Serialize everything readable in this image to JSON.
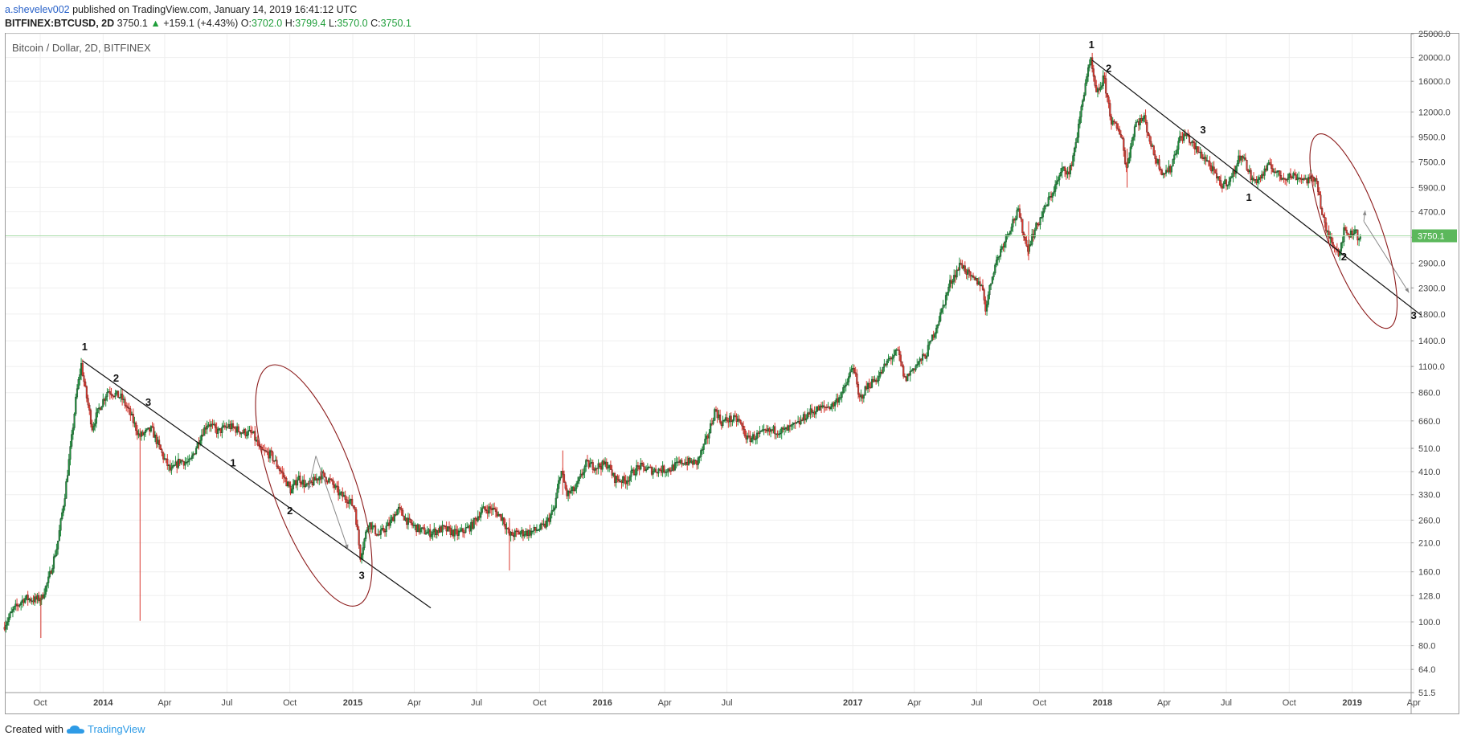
{
  "header": {
    "author": "a.shevelev002",
    "published": "published on TradingView.com, January 14, 2019 16:41:12 UTC",
    "symbol": "BITFINEX:BTCUSD, 2D",
    "price": "3750.1",
    "change_arrow": "▲",
    "change": "+159.1 (+4.43%)",
    "o_label": "O:",
    "o_value": "3702.0",
    "h_label": "H:",
    "h_value": "3799.4",
    "l_label": "L:",
    "l_value": "3570.0",
    "c_label": "C:",
    "c_value": "3750.1"
  },
  "chart_title": "Bitcoin / Dollar, 2D, BITFINEX",
  "footer": {
    "created_with": "Created with",
    "brand": "TradingView"
  },
  "colors": {
    "up": "#1e8f3c",
    "down": "#d9372e",
    "last_price_bg": "#5cb85c",
    "annotation": "#8b1a1a",
    "grid": "#efefef"
  },
  "chart_data": {
    "type": "candlestick",
    "scale": "log",
    "ylim": [
      51.5,
      25000
    ],
    "y_ticks": [
      "25000.0",
      "20000.0",
      "16000.0",
      "12000.0",
      "9500.0",
      "7500.0",
      "5900.0",
      "4700.0",
      "3700.0",
      "2900.0",
      "2300.0",
      "1800.0",
      "1400.0",
      "1100.0",
      "860.0",
      "660.0",
      "510.0",
      "410.0",
      "330.0",
      "260.0",
      "210.0",
      "160.0",
      "128.0",
      "100.0",
      "80.0",
      "64.0",
      "51.5"
    ],
    "x_ticks": [
      {
        "label": "Oct",
        "date": "2013-10-01"
      },
      {
        "label": "2014",
        "date": "2014-01-01",
        "bold": true
      },
      {
        "label": "Apr",
        "date": "2014-04-01"
      },
      {
        "label": "Jul",
        "date": "2014-07-01"
      },
      {
        "label": "Oct",
        "date": "2014-10-01"
      },
      {
        "label": "2015",
        "date": "2015-01-01",
        "bold": true
      },
      {
        "label": "Apr",
        "date": "2015-04-01"
      },
      {
        "label": "Jul",
        "date": "2015-07-01"
      },
      {
        "label": "Oct",
        "date": "2015-10-01"
      },
      {
        "label": "2016",
        "date": "2016-01-01",
        "bold": true
      },
      {
        "label": "Apr",
        "date": "2016-04-01"
      },
      {
        "label": "Jul",
        "date": "2016-07-01"
      },
      {
        "label": "2017",
        "date": "2017-01-01",
        "bold": true
      },
      {
        "label": "Apr",
        "date": "2017-04-01"
      },
      {
        "label": "Jul",
        "date": "2017-07-01"
      },
      {
        "label": "Oct",
        "date": "2017-10-01"
      },
      {
        "label": "2018",
        "date": "2018-01-01",
        "bold": true
      },
      {
        "label": "Apr",
        "date": "2018-04-01"
      },
      {
        "label": "Jul",
        "date": "2018-07-01"
      },
      {
        "label": "Oct",
        "date": "2018-10-01"
      },
      {
        "label": "2019",
        "date": "2019-01-01",
        "bold": true
      },
      {
        "label": "Apr",
        "date": "2019-04-01"
      }
    ],
    "price_path": [
      [
        "2013-08-10",
        95
      ],
      [
        "2013-08-25",
        112
      ],
      [
        "2013-09-10",
        125
      ],
      [
        "2013-09-25",
        123
      ],
      [
        "2013-10-05",
        125
      ],
      [
        "2013-10-15",
        148
      ],
      [
        "2013-10-28",
        205
      ],
      [
        "2013-11-08",
        330
      ],
      [
        "2013-11-18",
        560
      ],
      [
        "2013-11-25",
        850
      ],
      [
        "2013-12-02",
        1120
      ],
      [
        "2013-12-08",
        880
      ],
      [
        "2013-12-18",
        620
      ],
      [
        "2013-12-28",
        740
      ],
      [
        "2014-01-10",
        880
      ],
      [
        "2014-01-30",
        820
      ],
      [
        "2014-02-12",
        700
      ],
      [
        "2014-02-25",
        570
      ],
      [
        "2014-03-15",
        610
      ],
      [
        "2014-04-01",
        470
      ],
      [
        "2014-04-12",
        410
      ],
      [
        "2014-04-25",
        455
      ],
      [
        "2014-05-10",
        445
      ],
      [
        "2014-05-25",
        570
      ],
      [
        "2014-06-05",
        650
      ],
      [
        "2014-06-20",
        595
      ],
      [
        "2014-07-05",
        630
      ],
      [
        "2014-07-25",
        595
      ],
      [
        "2014-08-10",
        585
      ],
      [
        "2014-08-20",
        500
      ],
      [
        "2014-09-05",
        480
      ],
      [
        "2014-09-20",
        410
      ],
      [
        "2014-10-05",
        340
      ],
      [
        "2014-10-15",
        390
      ],
      [
        "2014-10-28",
        355
      ],
      [
        "2014-11-10",
        380
      ],
      [
        "2014-11-18",
        400
      ],
      [
        "2014-12-01",
        375
      ],
      [
        "2014-12-15",
        330
      ],
      [
        "2014-12-28",
        315
      ],
      [
        "2015-01-06",
        290
      ],
      [
        "2015-01-14",
        185
      ],
      [
        "2015-01-26",
        255
      ],
      [
        "2015-02-10",
        225
      ],
      [
        "2015-02-25",
        250
      ],
      [
        "2015-03-10",
        290
      ],
      [
        "2015-03-25",
        255
      ],
      [
        "2015-04-10",
        238
      ],
      [
        "2015-04-25",
        230
      ],
      [
        "2015-05-15",
        240
      ],
      [
        "2015-06-05",
        228
      ],
      [
        "2015-06-25",
        245
      ],
      [
        "2015-07-10",
        285
      ],
      [
        "2015-07-25",
        290
      ],
      [
        "2015-08-10",
        265
      ],
      [
        "2015-08-20",
        225
      ],
      [
        "2015-09-01",
        230
      ],
      [
        "2015-09-20",
        232
      ],
      [
        "2015-10-10",
        245
      ],
      [
        "2015-10-25",
        290
      ],
      [
        "2015-11-03",
        420
      ],
      [
        "2015-11-12",
        330
      ],
      [
        "2015-11-25",
        350
      ],
      [
        "2015-12-10",
        440
      ],
      [
        "2015-12-25",
        430
      ],
      [
        "2016-01-10",
        440
      ],
      [
        "2016-01-20",
        385
      ],
      [
        "2016-02-05",
        375
      ],
      [
        "2016-02-25",
        430
      ],
      [
        "2016-03-15",
        415
      ],
      [
        "2016-04-10",
        420
      ],
      [
        "2016-04-30",
        450
      ],
      [
        "2016-05-20",
        445
      ],
      [
        "2016-06-05",
        570
      ],
      [
        "2016-06-16",
        740
      ],
      [
        "2016-06-24",
        650
      ],
      [
        "2016-07-05",
        670
      ],
      [
        "2016-07-20",
        665
      ],
      [
        "2016-08-02",
        555
      ],
      [
        "2016-08-20",
        580
      ],
      [
        "2016-09-10",
        605
      ],
      [
        "2016-09-25",
        600
      ],
      [
        "2016-10-15",
        640
      ],
      [
        "2016-10-30",
        710
      ],
      [
        "2016-11-15",
        740
      ],
      [
        "2016-12-05",
        765
      ],
      [
        "2016-12-22",
        890
      ],
      [
        "2017-01-04",
        1120
      ],
      [
        "2017-01-12",
        800
      ],
      [
        "2017-01-25",
        920
      ],
      [
        "2017-02-10",
        1000
      ],
      [
        "2017-02-25",
        1180
      ],
      [
        "2017-03-10",
        1260
      ],
      [
        "2017-03-20",
        970
      ],
      [
        "2017-04-01",
        1080
      ],
      [
        "2017-04-20",
        1230
      ],
      [
        "2017-05-10",
        1750
      ],
      [
        "2017-05-25",
        2400
      ],
      [
        "2017-06-10",
        2900
      ],
      [
        "2017-06-25",
        2500
      ],
      [
        "2017-07-10",
        2400
      ],
      [
        "2017-07-16",
        1900
      ],
      [
        "2017-07-28",
        2750
      ],
      [
        "2017-08-10",
        3450
      ],
      [
        "2017-08-25",
        4300
      ],
      [
        "2017-09-02",
        4700
      ],
      [
        "2017-09-15",
        3300
      ],
      [
        "2017-09-25",
        3900
      ],
      [
        "2017-10-10",
        4800
      ],
      [
        "2017-10-25",
        5900
      ],
      [
        "2017-11-08",
        7200
      ],
      [
        "2017-11-15",
        6600
      ],
      [
        "2017-11-28",
        10000
      ],
      [
        "2017-12-10",
        16500
      ],
      [
        "2017-12-17",
        19200
      ],
      [
        "2017-12-25",
        14000
      ],
      [
        "2018-01-05",
        16500
      ],
      [
        "2018-01-16",
        11000
      ],
      [
        "2018-02-01",
        9500
      ],
      [
        "2018-02-06",
        6900
      ],
      [
        "2018-02-20",
        10800
      ],
      [
        "2018-03-05",
        11300
      ],
      [
        "2018-03-18",
        8200
      ],
      [
        "2018-04-01",
        6800
      ],
      [
        "2018-04-12",
        7000
      ],
      [
        "2018-04-25",
        9300
      ],
      [
        "2018-05-05",
        9700
      ],
      [
        "2018-05-20",
        8400
      ],
      [
        "2018-06-05",
        7600
      ],
      [
        "2018-06-25",
        6000
      ],
      [
        "2018-07-10",
        6400
      ],
      [
        "2018-07-25",
        8200
      ],
      [
        "2018-08-10",
        6300
      ],
      [
        "2018-08-20",
        6400
      ],
      [
        "2018-09-05",
        7300
      ],
      [
        "2018-09-20",
        6500
      ],
      [
        "2018-10-10",
        6600
      ],
      [
        "2018-10-30",
        6320
      ],
      [
        "2018-11-12",
        6400
      ],
      [
        "2018-11-20",
        4600
      ],
      [
        "2018-11-26",
        3900
      ],
      [
        "2018-12-06",
        3500
      ],
      [
        "2018-12-15",
        3200
      ],
      [
        "2018-12-22",
        3900
      ],
      [
        "2019-01-01",
        3800
      ],
      [
        "2019-01-08",
        4020
      ],
      [
        "2019-01-12",
        3600
      ],
      [
        "2019-01-14",
        3750
      ]
    ],
    "wicks": [
      {
        "date": "2014-02-24",
        "low": 101,
        "high": 600
      },
      {
        "date": "2013-10-02",
        "low": 86,
        "high": 128
      },
      {
        "date": "2015-08-18",
        "low": 162,
        "high": 265
      },
      {
        "date": "2015-11-04",
        "low": 330,
        "high": 500
      },
      {
        "date": "2017-09-15",
        "low": 2980,
        "high": 4300
      },
      {
        "date": "2018-02-06",
        "low": 5900,
        "high": 8500
      }
    ],
    "last_price": 3750.1,
    "last_price_label": "3750.1",
    "wave_labels": [
      {
        "text": "1",
        "date": "2013-12-05",
        "price": 1280
      },
      {
        "text": "2",
        "date": "2014-01-20",
        "price": 955
      },
      {
        "text": "3",
        "date": "2014-03-08",
        "price": 760
      },
      {
        "text": "1",
        "date": "2014-07-10",
        "price": 430
      },
      {
        "text": "2",
        "date": "2014-10-01",
        "price": 275
      },
      {
        "text": "3",
        "date": "2015-01-14",
        "price": 150
      },
      {
        "text": "1",
        "date": "2017-12-16",
        "price": 21800
      },
      {
        "text": "2",
        "date": "2018-01-10",
        "price": 17500
      },
      {
        "text": "3",
        "date": "2018-05-28",
        "price": 9800
      },
      {
        "text": "1",
        "date": "2018-08-03",
        "price": 5200
      },
      {
        "text": "2",
        "date": "2018-12-20",
        "price": 2980
      },
      {
        "text": "3",
        "date": "2019-04-01",
        "price": 1720
      }
    ],
    "trendlines": [
      {
        "from": {
          "date": "2013-12-02",
          "price": 1160
        },
        "to": {
          "date": "2015-04-25",
          "price": 114
        }
      },
      {
        "from": {
          "date": "2017-12-17",
          "price": 19500
        },
        "to": {
          "date": "2019-04-12",
          "price": 1780
        }
      }
    ],
    "arrows": [
      {
        "from": {
          "date": "2014-11-08",
          "price": 475
        },
        "to": {
          "date": "2014-12-25",
          "price": 198
        }
      },
      {
        "from": {
          "date": "2014-11-08",
          "price": 475
        },
        "to": {
          "date": "2014-10-28",
          "price": 345
        }
      },
      {
        "from": {
          "date": "2019-01-18",
          "price": 4300
        },
        "to": {
          "date": "2019-01-20",
          "price": 4750
        }
      },
      {
        "from": {
          "date": "2019-01-18",
          "price": 4300
        },
        "to": {
          "date": "2019-03-25",
          "price": 2200
        }
      }
    ],
    "circles": [
      {
        "center": {
          "date": "2014-11-05",
          "price": 360
        },
        "rx_days": 60,
        "ry_log": 0.52
      },
      {
        "center": {
          "date": "2019-01-03",
          "price": 3920
        },
        "rx_days": 40,
        "ry_log": 0.42
      }
    ]
  }
}
